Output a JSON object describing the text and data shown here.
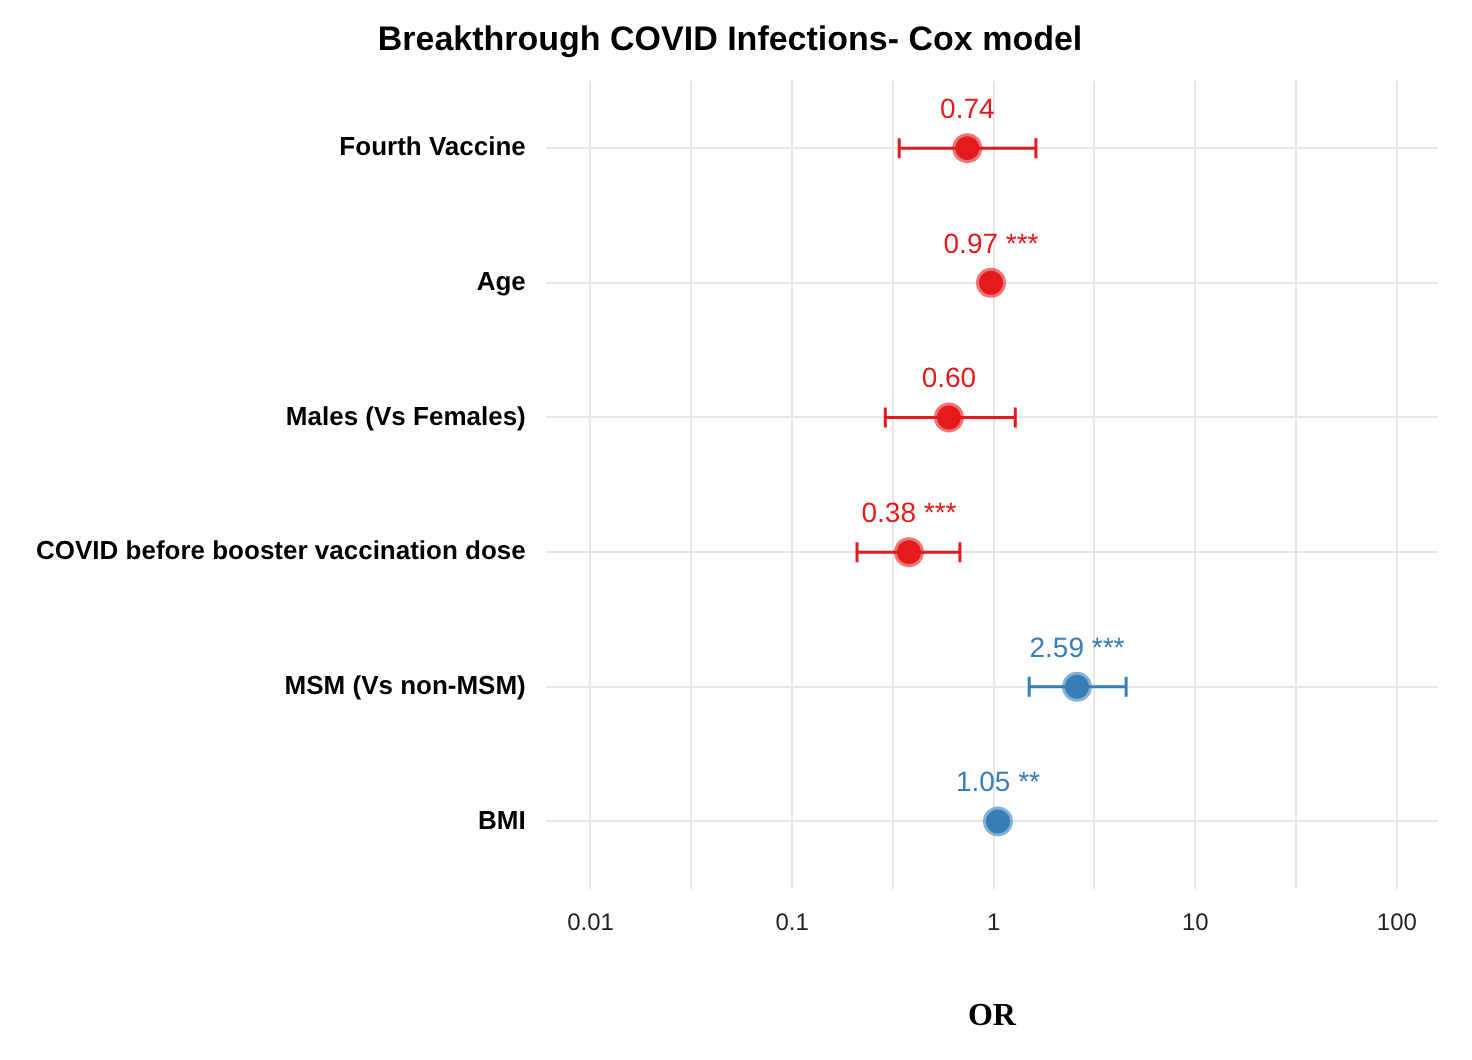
{
  "chart_data": {
    "type": "scatter",
    "orientation": "horizontal",
    "title": "Breakthrough COVID Infections- Cox model",
    "xlabel": "OR",
    "categories": [
      "Fourth Vaccine",
      "Age",
      "Males (Vs Females)",
      "COVID before booster vaccination dose",
      "MSM (Vs non-MSM)",
      "BMI"
    ],
    "values": [
      0.74,
      0.97,
      0.6,
      0.38,
      2.59,
      1.05
    ],
    "errors": [
      [
        0.34,
        1.62
      ],
      null,
      [
        0.29,
        1.28
      ],
      [
        0.21,
        0.68
      ],
      [
        1.5,
        4.54
      ],
      null
    ],
    "colors": [
      "#e41a1c",
      "#e41a1c",
      "#e41a1c",
      "#e41a1c",
      "#377eb8",
      "#377eb8"
    ],
    "value_labels": [
      "0.74",
      "0.97 ***",
      "0.60",
      "0.38 ***",
      "2.59 ***",
      "1.05 **"
    ],
    "xlim": [
      0.006,
      160
    ],
    "xticks": [
      0.01,
      {
        "value": 0.0316,
        "label": null
      },
      0.1,
      {
        "value": 0.316,
        "label": null
      },
      1,
      {
        "value": 3.16,
        "label": null
      },
      10,
      {
        "value": 31.6,
        "label": null
      },
      100
    ],
    "log": "x",
    "grid": true,
    "marker": "circle"
  }
}
